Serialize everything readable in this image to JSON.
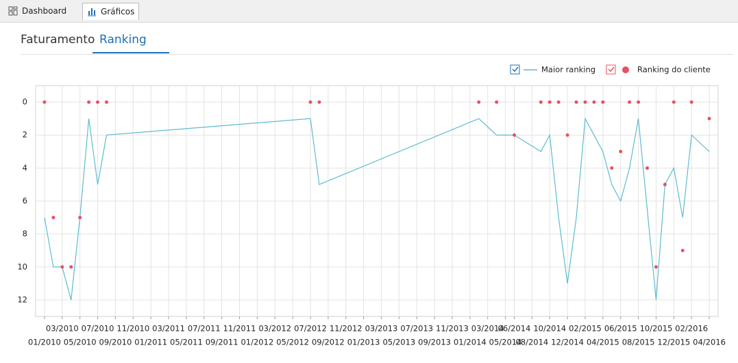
{
  "tabs": [
    "Dashboard",
    "Gráficos"
  ],
  "subtabs": [
    "Faturamento",
    "Ranking"
  ],
  "chart_data": {
    "type": "line-scatter",
    "xlim": [
      "12/2009",
      "05/2016"
    ],
    "xticks": [
      "01/2010",
      "03/2010",
      "05/2010",
      "07/2010",
      "09/2010",
      "11/2010",
      "01/2011",
      "03/2011",
      "05/2011",
      "07/2011",
      "09/2011",
      "11/2011",
      "01/2012",
      "03/2012",
      "05/2012",
      "07/2012",
      "09/2012",
      "11/2012",
      "01/2013",
      "03/2013",
      "05/2013",
      "07/2013",
      "09/2013",
      "11/2013",
      "01/2014",
      "03/2014",
      "05/2014",
      "06/2014",
      "08/2014",
      "10/2014",
      "12/2014",
      "02/2015",
      "04/2015",
      "06/2015",
      "08/2015",
      "10/2015",
      "12/2015",
      "02/2016",
      "04/2016"
    ],
    "ylim": [
      -1,
      13
    ],
    "y_inverted": true,
    "yticks": [
      0,
      2,
      4,
      6,
      8,
      10,
      12
    ],
    "grid": true,
    "series": [
      {
        "name": "Maior ranking",
        "type": "line",
        "color": "#5bbcd0",
        "x": [
          "01/2010",
          "02/2010",
          "03/2010",
          "04/2010",
          "05/2010",
          "06/2010",
          "07/2010",
          "08/2010",
          "07/2012",
          "08/2012",
          "02/2014",
          "04/2014",
          "06/2014",
          "09/2014",
          "10/2014",
          "11/2014",
          "12/2014",
          "01/2015",
          "02/2015",
          "03/2015",
          "04/2015",
          "05/2015",
          "06/2015",
          "07/2015",
          "08/2015",
          "10/2015",
          "11/2015",
          "12/2015",
          "01/2016",
          "02/2016",
          "04/2016"
        ],
        "values": [
          7,
          10,
          10,
          12,
          7,
          1,
          5,
          2,
          1,
          5,
          1,
          2,
          2,
          3,
          2,
          7,
          11,
          7,
          1,
          2,
          3,
          5,
          6,
          4,
          1,
          12,
          5,
          4,
          7,
          2,
          3
        ]
      },
      {
        "name": "Ranking do cliente",
        "type": "scatter",
        "color": "#e8505f",
        "x": [
          "01/2010",
          "02/2010",
          "03/2010",
          "04/2010",
          "05/2010",
          "06/2010",
          "07/2010",
          "08/2010",
          "07/2012",
          "08/2012",
          "02/2014",
          "04/2014",
          "06/2014",
          "09/2014",
          "10/2014",
          "11/2014",
          "12/2014",
          "01/2015",
          "02/2015",
          "03/2015",
          "04/2015",
          "05/2015",
          "06/2015",
          "07/2015",
          "08/2015",
          "09/2015",
          "10/2015",
          "11/2015",
          "12/2015",
          "01/2016",
          "02/2016",
          "04/2016"
        ],
        "values": [
          0,
          7,
          10,
          10,
          7,
          0,
          0,
          0,
          0,
          0,
          0,
          0,
          2,
          0,
          0,
          0,
          2,
          0,
          0,
          0,
          0,
          4,
          3,
          0,
          0,
          4,
          10,
          5,
          0,
          9,
          0,
          1
        ]
      }
    ]
  }
}
